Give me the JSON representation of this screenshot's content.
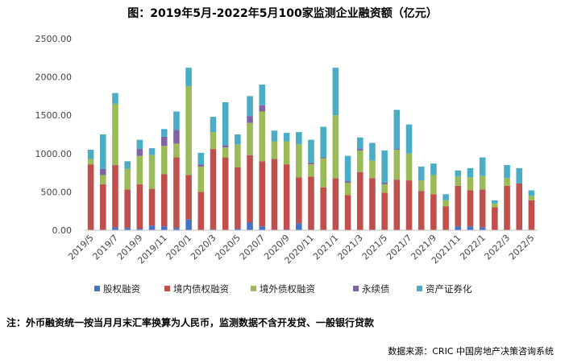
{
  "chart_data": {
    "type": "bar",
    "stacked": true,
    "title": "图：2019年5月-2022年5月100家监测企业融资额（亿元）",
    "xlabel": "",
    "ylabel": "",
    "ylim": [
      0,
      2500
    ],
    "y_ticks": [
      "0.00",
      "500.00",
      "1000.00",
      "1500.00",
      "2000.00",
      "2500.00"
    ],
    "grid": false,
    "legend_position": "bottom",
    "categories": [
      "2019/5",
      "2019/6",
      "2019/7",
      "2019/8",
      "2019/9",
      "2019/10",
      "2019/11",
      "2019/12",
      "2020/1",
      "2020/2",
      "2020/3",
      "2020/4",
      "2020/5",
      "2020/6",
      "2020/7",
      "2020/8",
      "2020/9",
      "2020/10",
      "2020/11",
      "2020/12",
      "2021/1",
      "2021/2",
      "2021/3",
      "2021/4",
      "2021/5",
      "2021/6",
      "2021/7",
      "2021/8",
      "2021/9",
      "2021/10",
      "2021/11",
      "2021/12",
      "2022/1",
      "2022/2",
      "2022/3",
      "2022/4",
      "2022/5"
    ],
    "x_tick_labels": [
      "2019/5",
      "2019/7",
      "2019/9",
      "2019/11",
      "2020/1",
      "2020/3",
      "2020/5",
      "2020/7",
      "2020/9",
      "2020/11",
      "2021/1",
      "2021/3",
      "2021/5",
      "2021/7",
      "2021/9",
      "2021/11",
      "2022/1",
      "2022/3",
      "2022/5"
    ],
    "series": [
      {
        "name": "股权融资",
        "color": "#4472c4",
        "values": [
          0,
          0,
          40,
          30,
          20,
          60,
          50,
          30,
          140,
          0,
          10,
          0,
          20,
          100,
          50,
          0,
          10,
          90,
          0,
          0,
          0,
          0,
          0,
          0,
          0,
          0,
          0,
          0,
          0,
          0,
          50,
          50,
          40,
          0,
          0,
          0,
          0
        ]
      },
      {
        "name": "境内债权融资",
        "color": "#c0504d",
        "values": [
          860,
          600,
          810,
          500,
          580,
          480,
          680,
          920,
          580,
          500,
          1050,
          950,
          800,
          880,
          850,
          930,
          850,
          600,
          700,
          560,
          680,
          460,
          760,
          680,
          490,
          660,
          650,
          510,
          470,
          310,
          530,
          470,
          490,
          300,
          580,
          610,
          390
        ]
      },
      {
        "name": "境外债权融资",
        "color": "#9bbb59",
        "values": [
          70,
          120,
          800,
          270,
          370,
          440,
          370,
          180,
          1160,
          330,
          220,
          130,
          300,
          420,
          650,
          230,
          300,
          430,
          160,
          380,
          820,
          160,
          280,
          230,
          110,
          390,
          350,
          140,
          250,
          80,
          120,
          170,
          180,
          50,
          100,
          0,
          60
        ]
      },
      {
        "name": "永续债",
        "color": "#8064a2",
        "values": [
          0,
          80,
          0,
          0,
          90,
          0,
          120,
          180,
          0,
          30,
          0,
          30,
          0,
          90,
          80,
          0,
          0,
          0,
          20,
          10,
          0,
          20,
          20,
          0,
          20,
          10,
          0,
          0,
          0,
          0,
          0,
          0,
          0,
          0,
          0,
          0,
          0
        ]
      },
      {
        "name": "资产证券化",
        "color": "#4bacc6",
        "values": [
          120,
          450,
          140,
          100,
          120,
          90,
          100,
          240,
          240,
          150,
          200,
          560,
          130,
          260,
          270,
          140,
          110,
          160,
          300,
          400,
          620,
          330,
          150,
          230,
          420,
          510,
          380,
          180,
          150,
          80,
          80,
          120,
          240,
          40,
          170,
          200,
          70
        ]
      }
    ],
    "note": "注：外币融资统一按当月月末汇率换算为人民币，监测数据不含开发贷、一般银行贷款",
    "source": "数据来源：CRIC 中国房地产决策咨询系统"
  }
}
